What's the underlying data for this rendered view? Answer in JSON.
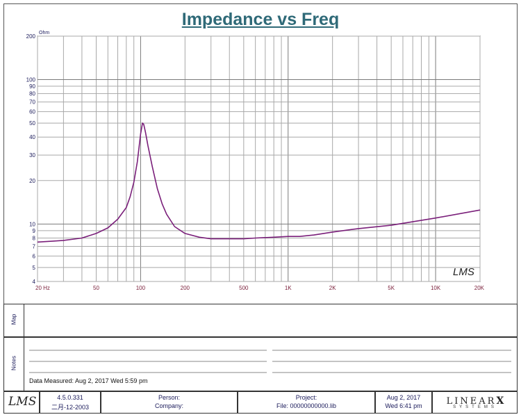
{
  "chart_data": {
    "type": "line",
    "title": "Impedance vs Freq",
    "ylabel": "Ohm",
    "xscale": "log",
    "yscale": "log",
    "xlim": [
      20,
      20000
    ],
    "ylim": [
      4,
      200
    ],
    "grid": true,
    "x_ticks": [
      {
        "value": 20,
        "label": "20  Hz"
      },
      {
        "value": 50,
        "label": "50"
      },
      {
        "value": 100,
        "label": "100"
      },
      {
        "value": 200,
        "label": "200"
      },
      {
        "value": 500,
        "label": "500"
      },
      {
        "value": 1000,
        "label": "1K"
      },
      {
        "value": 2000,
        "label": "2K"
      },
      {
        "value": 5000,
        "label": "5K"
      },
      {
        "value": 10000,
        "label": "10K"
      },
      {
        "value": 20000,
        "label": "20K"
      }
    ],
    "y_ticks": [
      {
        "value": 200,
        "label": "200"
      },
      {
        "value": 100,
        "label": "100"
      },
      {
        "value": 90,
        "label": "90"
      },
      {
        "value": 80,
        "label": "80"
      },
      {
        "value": 70,
        "label": "70"
      },
      {
        "value": 60,
        "label": "60"
      },
      {
        "value": 50,
        "label": "50"
      },
      {
        "value": 40,
        "label": "40"
      },
      {
        "value": 30,
        "label": "30"
      },
      {
        "value": 20,
        "label": "20"
      },
      {
        "value": 10,
        "label": "10"
      },
      {
        "value": 9,
        "label": "9"
      },
      {
        "value": 8,
        "label": "8"
      },
      {
        "value": 7,
        "label": "7"
      },
      {
        "value": 6,
        "label": "6"
      },
      {
        "value": 5,
        "label": "5"
      },
      {
        "value": 4,
        "label": "4"
      }
    ],
    "series": [
      {
        "color": "#7a1f7a",
        "x": [
          20,
          25,
          30,
          40,
          50,
          60,
          70,
          80,
          85,
          90,
          95,
          100,
          103,
          105,
          108,
          112,
          120,
          130,
          140,
          150,
          170,
          200,
          250,
          300,
          400,
          500,
          600,
          800,
          1000,
          1200,
          1500,
          2000,
          3000,
          5000,
          10000,
          20000
        ],
        "y": [
          7.5,
          7.6,
          7.7,
          8.0,
          8.6,
          9.4,
          10.8,
          13.0,
          15.5,
          19.5,
          27.0,
          42.0,
          50.0,
          49.0,
          43.0,
          35.0,
          25.0,
          17.5,
          13.8,
          11.7,
          9.6,
          8.6,
          8.1,
          7.9,
          7.9,
          7.9,
          8.0,
          8.1,
          8.2,
          8.2,
          8.4,
          8.8,
          9.3,
          9.8,
          11.0,
          12.5
        ]
      }
    ]
  },
  "logo_text": "LMS",
  "panels": {
    "map_label": "Map",
    "notes_label": "Notes",
    "data_measured": "Data Measured: Aug  2, 2017  Wed  5:59 pm"
  },
  "footer": {
    "version": "4.5.0.331",
    "build_date": "二月-12-2003",
    "person_label": "Person:",
    "company_label": "Company:",
    "project_label": "Project:",
    "file_label": "File: 00000000000.lib",
    "date": "Aug  2, 2017",
    "day_time": "Wed  6:41 pm",
    "brand_main": "LINEAR",
    "brand_x": "X",
    "brand_sub": "SYSTEMS",
    "logo_text": "LMS"
  }
}
